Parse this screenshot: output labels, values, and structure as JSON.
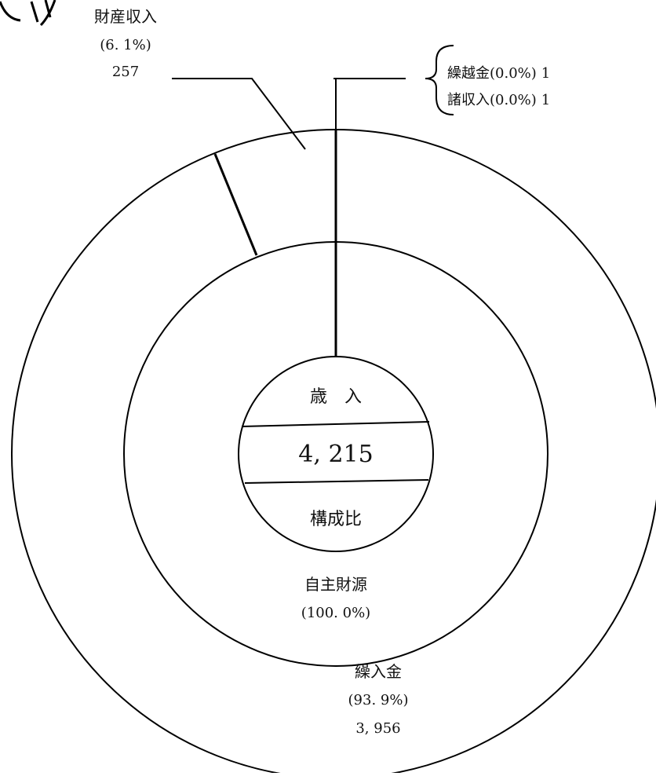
{
  "chart_data": {
    "type": "pie",
    "style": "double-donut",
    "total": {
      "heading": "歳　入",
      "value": "4, 215",
      "caption": "構成比"
    },
    "inner_ring": [
      {
        "label": "自主財源",
        "percent_text": "(100. 0%)",
        "percent": 100.0
      }
    ],
    "outer_ring": [
      {
        "label": "繰入金",
        "percent_text": "(93. 9%)",
        "value_text": "3, 956",
        "percent": 93.9,
        "value": 3956
      },
      {
        "label": "財産収入",
        "percent_text": "(6. 1%)",
        "value_text": "257",
        "percent": 6.1,
        "value": 257
      },
      {
        "label": "繰越金",
        "percent_text": "(0.0%)",
        "value_text": "1",
        "percent": 0.0,
        "value": 1
      },
      {
        "label": "諸収入",
        "percent_text": "(0.0%)",
        "value_text": "1",
        "percent": 0.0,
        "value": 1
      }
    ]
  }
}
